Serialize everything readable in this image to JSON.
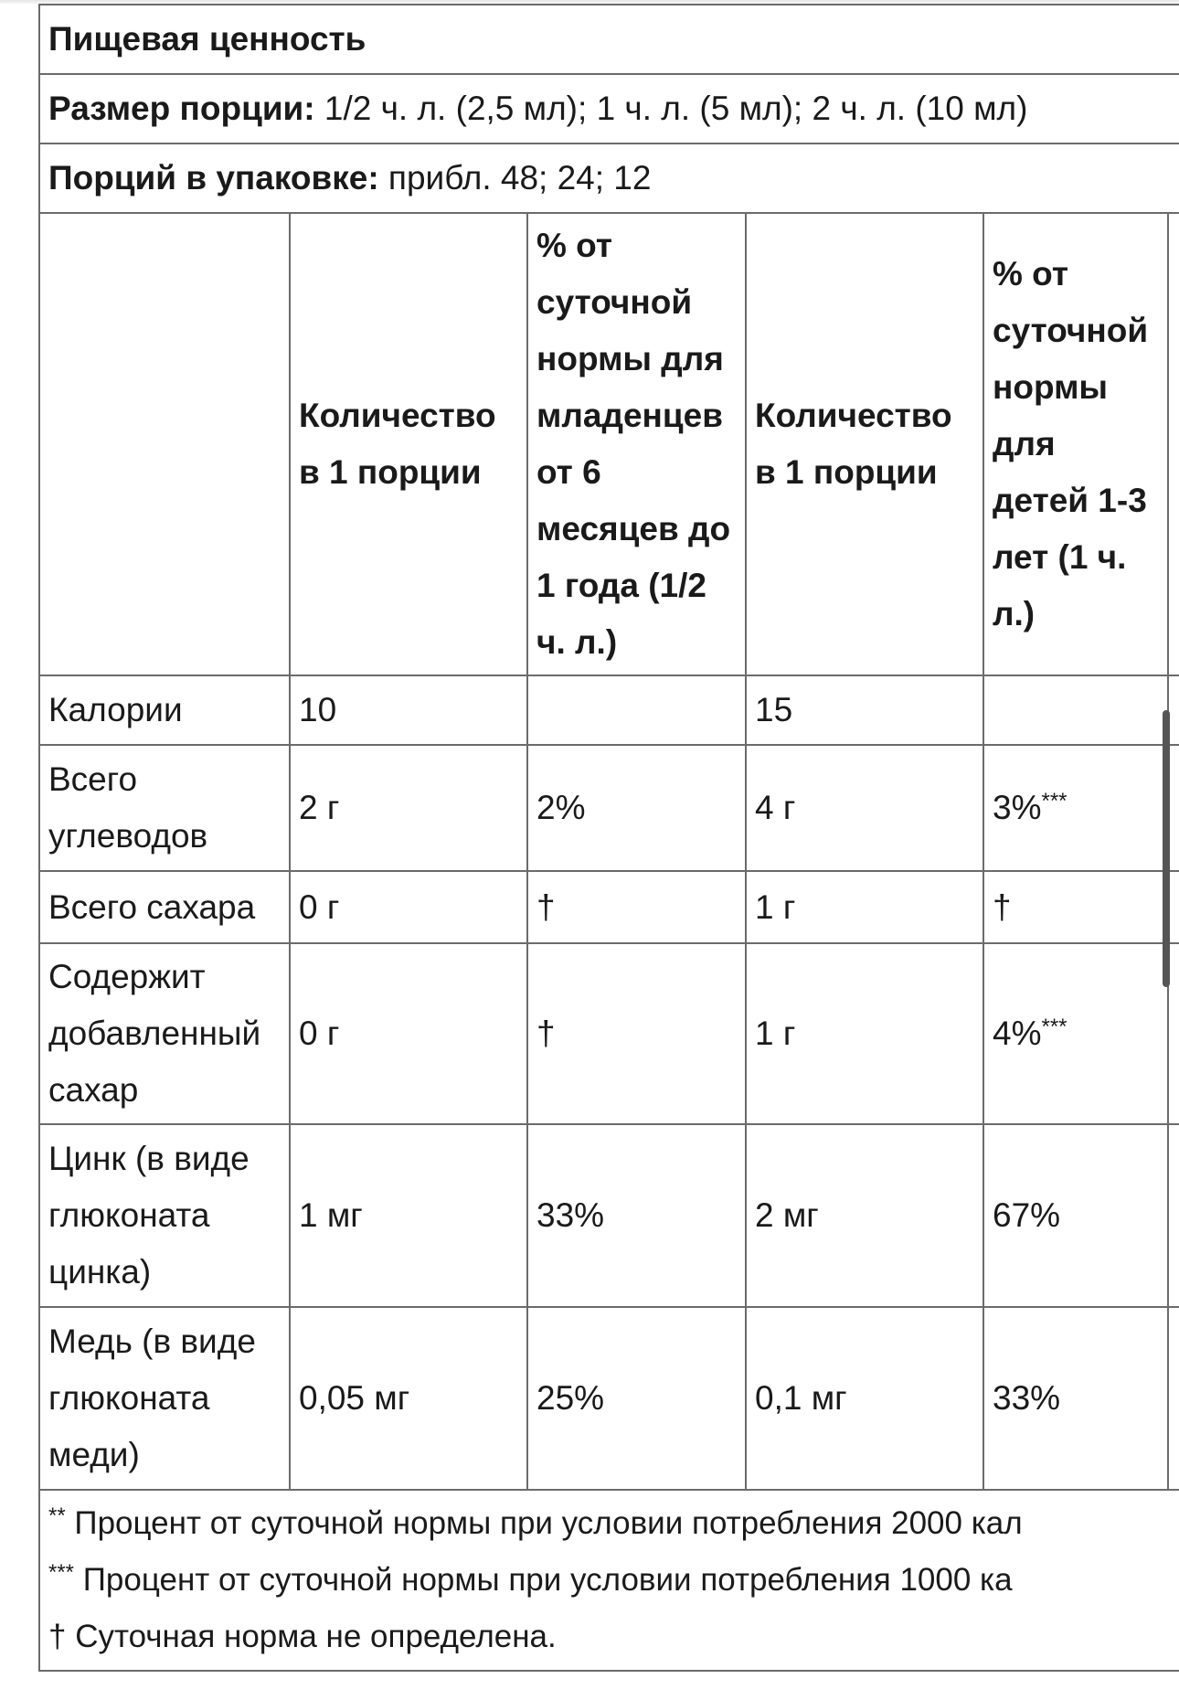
{
  "title": "Пищевая ценность",
  "serving_size": {
    "label": "Размер порции:",
    "value": " 1/2 ч. л. (2,5 мл); 1 ч. л. (5 мл); 2 ч. л. (10 мл)"
  },
  "servings_per_container": {
    "label": "Порций в упаковке:",
    "value": " прибл. 48; 24; 12"
  },
  "headers": [
    "",
    "Количество в 1 порции",
    "% от суточной нормы для младенцев от 6 месяцев до 1 года (1/2 ч. л.)",
    "Количество в 1 порции",
    "% от суточной нормы для детей 1-3 лет (1 ч. л.)"
  ],
  "rows": [
    {
      "name": "Калории",
      "c1": "10",
      "c2": "",
      "c3": "15",
      "c4": "",
      "c4_sup": ""
    },
    {
      "name": "Всего углеводов",
      "c1": "2 г",
      "c2": "2%",
      "c3": "4 г",
      "c4": "3%",
      "c4_sup": "***"
    },
    {
      "name": "Всего сахара",
      "c1": "0 г",
      "c2": "†",
      "c3": "1 г",
      "c4": "†",
      "c4_sup": ""
    },
    {
      "name": "Содержит добавленный сахар",
      "c1": "0 г",
      "c2": "†",
      "c3": "1 г",
      "c4": "4%",
      "c4_sup": "***"
    },
    {
      "name": "Цинк (в виде глюконата цинка)",
      "c1": "1 мг",
      "c2": "33%",
      "c3": "2 мг",
      "c4": "67%",
      "c4_sup": ""
    },
    {
      "name": "Медь (в виде глюконата меди)",
      "c1": "0,05 мг",
      "c2": "25%",
      "c3": "0,1 мг",
      "c4": "33%",
      "c4_sup": ""
    }
  ],
  "footnotes": [
    {
      "mark": "**",
      "text": " Процент от суточной нормы при условии потребления 2000 кал"
    },
    {
      "mark": "***",
      "text": " Процент от суточной нормы при условии потребления 1000 ка"
    },
    {
      "mark": "",
      "text": "† Суточная норма не определена."
    }
  ]
}
